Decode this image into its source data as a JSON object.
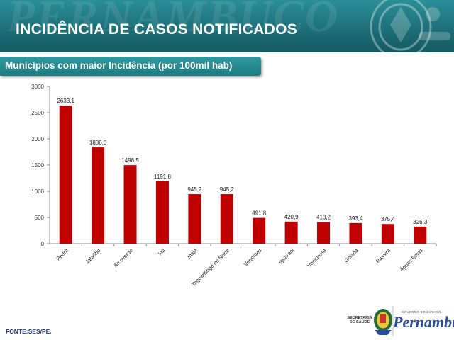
{
  "header": {
    "watermark_text": "PERNAMBUCO",
    "title": "INCIDÊNCIA DE CASOS NOTIFICADOS"
  },
  "subtitle": "Municípios com maior Incidência (por 100mil hab)",
  "source": "FONTE:SES/PE.",
  "logo": {
    "secretaria": "SECRETARIA DE SAÚDE",
    "governo": "GOVERNO DO ESTADO",
    "state": "Pernambuco"
  },
  "colors": {
    "header": "#1d6f78",
    "bar": "#c00000",
    "subtitle_box": "#1f7b82"
  },
  "chart_data": {
    "type": "bar",
    "categories": [
      "Pedra",
      "Jataúba",
      "Arcoverde",
      "Iati",
      "Inajá",
      "Taquaritinga do Norte",
      "Vertentes",
      "Iguaraci",
      "Venturosa",
      "Goiana",
      "Passira",
      "Águas Belas"
    ],
    "values": [
      2633.1,
      1836.6,
      1498.5,
      1191.8,
      945.2,
      945.2,
      491.8,
      420.9,
      413.2,
      393.4,
      375.4,
      326.3
    ],
    "value_labels": [
      "2633,1",
      "1836,6",
      "1498,5",
      "1191,8",
      "945,2",
      "945,2",
      "491,8",
      "420,9",
      "413,2",
      "393,4",
      "375,4",
      "326,3"
    ],
    "ylim": [
      0,
      3000
    ],
    "yticks": [
      0,
      500,
      1000,
      1500,
      2000,
      2500,
      3000
    ],
    "title": "",
    "xlabel": "",
    "ylabel": "",
    "grid": false,
    "legend": "none"
  }
}
